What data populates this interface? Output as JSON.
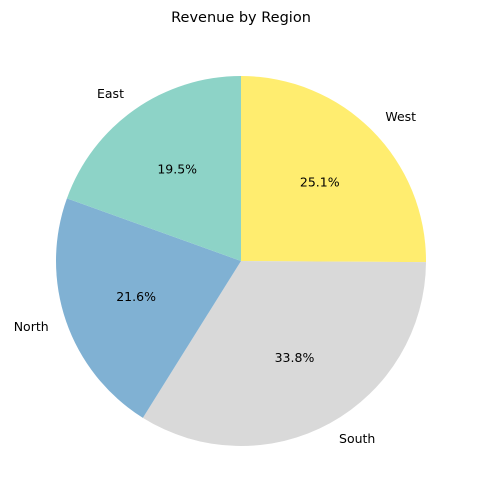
{
  "chart_data": {
    "type": "pie",
    "title": "Revenue by Region",
    "slices": [
      {
        "label": "West",
        "value": 25.1,
        "pct_label": "25.1%",
        "color": "#ffed6f"
      },
      {
        "label": "South",
        "value": 33.8,
        "pct_label": "33.8%",
        "color": "#d9d9d9"
      },
      {
        "label": "North",
        "value": 21.6,
        "pct_label": "21.6%",
        "color": "#80b1d3"
      },
      {
        "label": "East",
        "value": 19.5,
        "pct_label": "19.5%",
        "color": "#8dd3c7"
      }
    ],
    "start_angle_deg": 90,
    "direction": "clockwise",
    "legend": "none"
  }
}
